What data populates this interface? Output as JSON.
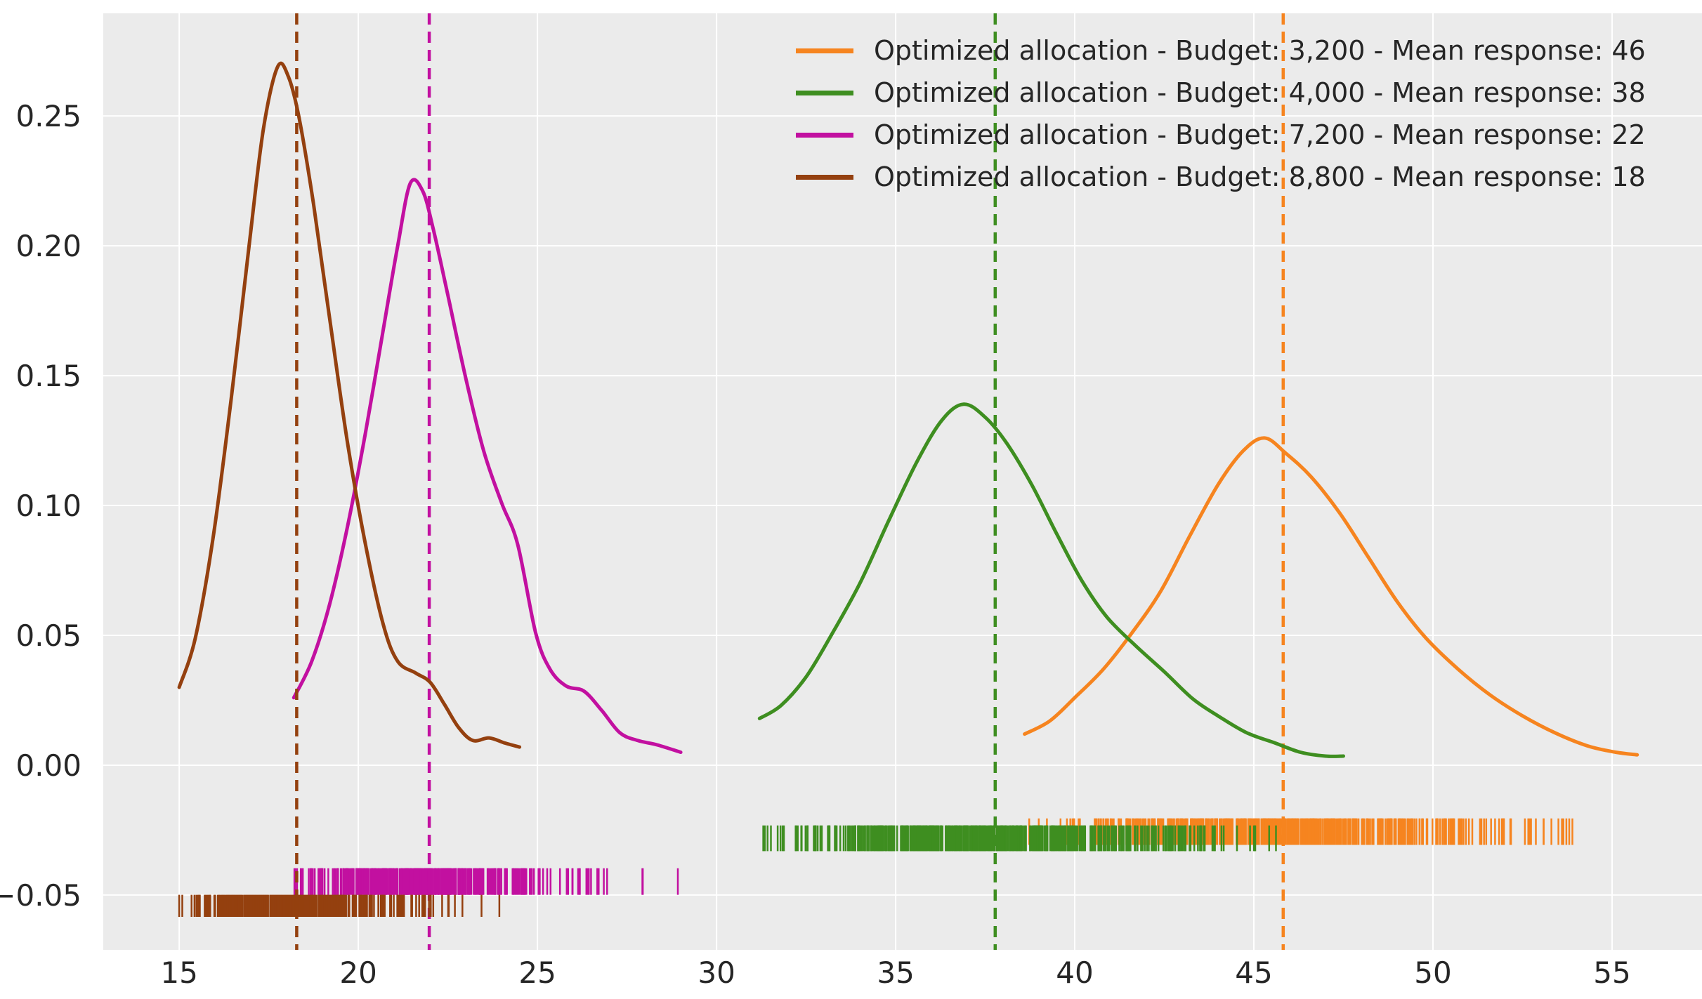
{
  "figure": {
    "background": "#ffffff",
    "plot_background": "#ebebeb",
    "grid_color": "#ffffff",
    "text_color": "#262626"
  },
  "chart_data": {
    "type": "line",
    "subtype": "kde-with-rug",
    "title": "",
    "xlabel": "",
    "ylabel": "",
    "grid": true,
    "legend_position": "upper right",
    "xlim": [
      12.88,
      57.51
    ],
    "ylim": [
      -0.0711,
      0.2895
    ],
    "x_ticks": [
      15,
      20,
      25,
      30,
      35,
      40,
      45,
      50,
      55
    ],
    "y_ticks": [
      -0.05,
      0.0,
      0.05,
      0.1,
      0.15,
      0.2,
      0.25
    ],
    "series": [
      {
        "name": "budget-3200",
        "label": "Optimized allocation - Budget: 3,200 - Mean response: 46",
        "budget": "3,200",
        "mean_response": 46,
        "color": "#f6841f",
        "mean_line_x": 45.82,
        "curve": [
          [
            38.6,
            0.012
          ],
          [
            39.3,
            0.017
          ],
          [
            40.0,
            0.026
          ],
          [
            40.8,
            0.037
          ],
          [
            41.6,
            0.051
          ],
          [
            42.4,
            0.067
          ],
          [
            43.2,
            0.088
          ],
          [
            44.0,
            0.108
          ],
          [
            44.7,
            0.121
          ],
          [
            45.3,
            0.126
          ],
          [
            45.9,
            0.12
          ],
          [
            46.6,
            0.111
          ],
          [
            47.4,
            0.097
          ],
          [
            48.2,
            0.08
          ],
          [
            49.0,
            0.063
          ],
          [
            49.8,
            0.049
          ],
          [
            50.7,
            0.037
          ],
          [
            51.6,
            0.027
          ],
          [
            52.5,
            0.019
          ],
          [
            53.4,
            0.0125
          ],
          [
            54.3,
            0.0075
          ],
          [
            55.1,
            0.005
          ],
          [
            55.7,
            0.004
          ]
        ],
        "rug": {
          "x_min": 38.55,
          "x_max": 55.4,
          "y_top": -0.0205,
          "y_bottom": -0.0307,
          "count": 520,
          "seed": 101
        }
      },
      {
        "name": "budget-4000",
        "label": "Optimized allocation - Budget: 4,000 - Mean response: 38",
        "budget": "4,000",
        "mean_response": 38,
        "color": "#3e8e20",
        "mean_line_x": 37.78,
        "curve": [
          [
            31.2,
            0.018
          ],
          [
            31.8,
            0.023
          ],
          [
            32.5,
            0.034
          ],
          [
            33.2,
            0.05
          ],
          [
            34.0,
            0.07
          ],
          [
            34.8,
            0.094
          ],
          [
            35.6,
            0.117
          ],
          [
            36.3,
            0.133
          ],
          [
            36.9,
            0.139
          ],
          [
            37.5,
            0.134
          ],
          [
            38.1,
            0.124
          ],
          [
            38.8,
            0.108
          ],
          [
            39.5,
            0.089
          ],
          [
            40.2,
            0.071
          ],
          [
            40.9,
            0.057
          ],
          [
            41.7,
            0.046
          ],
          [
            42.5,
            0.036
          ],
          [
            43.3,
            0.0255
          ],
          [
            44.0,
            0.019
          ],
          [
            44.8,
            0.0125
          ],
          [
            45.6,
            0.0085
          ],
          [
            46.3,
            0.005
          ],
          [
            47.0,
            0.0035
          ],
          [
            47.5,
            0.0035
          ]
        ],
        "rug": {
          "x_min": 31.3,
          "x_max": 47.3,
          "y_top": -0.0232,
          "y_bottom": -0.0331,
          "count": 520,
          "seed": 202
        }
      },
      {
        "name": "budget-7200",
        "label": "Optimized allocation - Budget: 7,200 - Mean response: 22",
        "budget": "7,200",
        "mean_response": 22,
        "color": "#c210a0",
        "mean_line_x": 21.98,
        "curve": [
          [
            18.2,
            0.026
          ],
          [
            18.7,
            0.04
          ],
          [
            19.2,
            0.062
          ],
          [
            19.7,
            0.092
          ],
          [
            20.2,
            0.128
          ],
          [
            20.7,
            0.168
          ],
          [
            21.1,
            0.2
          ],
          [
            21.45,
            0.224
          ],
          [
            21.8,
            0.221
          ],
          [
            22.1,
            0.206
          ],
          [
            22.5,
            0.181
          ],
          [
            23.0,
            0.149
          ],
          [
            23.5,
            0.121
          ],
          [
            24.0,
            0.101
          ],
          [
            24.45,
            0.085
          ],
          [
            24.95,
            0.051
          ],
          [
            25.35,
            0.037
          ],
          [
            25.8,
            0.0305
          ],
          [
            26.3,
            0.0285
          ],
          [
            26.8,
            0.021
          ],
          [
            27.3,
            0.0125
          ],
          [
            27.8,
            0.0095
          ],
          [
            28.35,
            0.0078
          ],
          [
            29.0,
            0.005
          ]
        ],
        "rug": {
          "x_min": 18.15,
          "x_max": 28.95,
          "y_top": -0.0397,
          "y_bottom": -0.0499,
          "count": 430,
          "seed": 303
        }
      },
      {
        "name": "budget-8800",
        "label": "Optimized allocation - Budget: 8,800 - Mean response: 18",
        "budget": "8,800",
        "mean_response": 18,
        "color": "#94400f",
        "mean_line_x": 18.28,
        "curve": [
          [
            15.0,
            0.03
          ],
          [
            15.45,
            0.049
          ],
          [
            15.95,
            0.088
          ],
          [
            16.45,
            0.141
          ],
          [
            16.95,
            0.2
          ],
          [
            17.35,
            0.245
          ],
          [
            17.75,
            0.269
          ],
          [
            18.05,
            0.265
          ],
          [
            18.35,
            0.249
          ],
          [
            18.75,
            0.216
          ],
          [
            19.2,
            0.172
          ],
          [
            19.7,
            0.124
          ],
          [
            20.2,
            0.085
          ],
          [
            20.7,
            0.054
          ],
          [
            21.1,
            0.04
          ],
          [
            21.6,
            0.0355
          ],
          [
            22.0,
            0.032
          ],
          [
            22.4,
            0.0235
          ],
          [
            22.8,
            0.0145
          ],
          [
            23.2,
            0.0095
          ],
          [
            23.65,
            0.0105
          ],
          [
            24.1,
            0.0085
          ],
          [
            24.5,
            0.007
          ]
        ],
        "rug": {
          "x_min": 15.0,
          "x_max": 24.3,
          "y_top": -0.0499,
          "y_bottom": -0.0584,
          "count": 430,
          "seed": 404
        }
      }
    ]
  }
}
